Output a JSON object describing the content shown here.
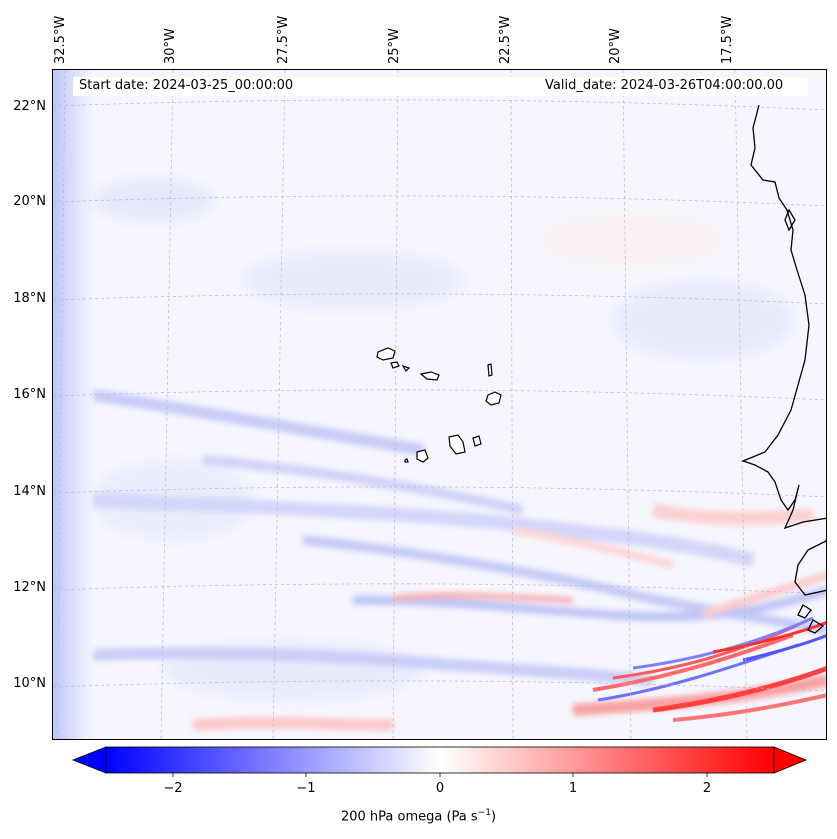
{
  "map": {
    "start_date": "Start date: 2024-03-25_00:00:00",
    "valid_date": "Valid_date: 2024-03-26T04:00:00.00",
    "lon_labels": [
      "32.5°W",
      "30°W",
      "27.5°W",
      "25°W",
      "22.5°W",
      "20°W",
      "17.5°W"
    ],
    "lat_labels": [
      "22°N",
      "20°N",
      "18°N",
      "16°N",
      "14°N",
      "12°N",
      "10°N"
    ],
    "features": [
      "West African coastline",
      "Cape Verde islands"
    ]
  },
  "colorbar": {
    "label_main": "200 hPa omega (Pa s",
    "label_exp": "−1",
    "label_end": ")",
    "ticks": [
      "−2",
      "−1",
      "0",
      "1",
      "2"
    ],
    "range": [
      -2.6,
      2.6
    ],
    "cmap": "bwr",
    "color_negative": "#0000ff",
    "color_zero": "#ffffff",
    "color_positive": "#ff0000"
  }
}
